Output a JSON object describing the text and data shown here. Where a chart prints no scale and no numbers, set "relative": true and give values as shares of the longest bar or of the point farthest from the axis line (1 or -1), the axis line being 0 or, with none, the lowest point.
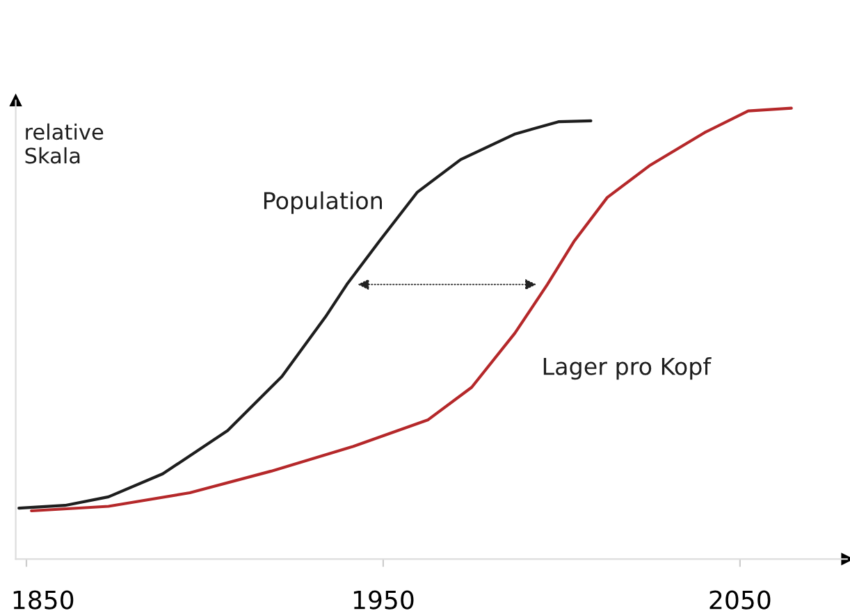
{
  "chart_data": {
    "type": "line",
    "relative": true,
    "ylabel": "relative\nSkala",
    "xlim": [
      1847,
      2080
    ],
    "xticks": [
      1850,
      1950,
      2050
    ],
    "grid": false,
    "legend": false,
    "series": [
      {
        "name": "Population",
        "color": "#1e1e1e",
        "x": [
          1847.9,
          1860.8,
          1873.0,
          1888.2,
          1906.4,
          1921.6,
          1933.8,
          1939.8,
          1949.0,
          1959.6,
          1971.7,
          1987.0,
          1999.1,
          2008.2
        ],
        "values": [
          0.113,
          0.119,
          0.138,
          0.189,
          0.285,
          0.405,
          0.537,
          0.609,
          0.706,
          0.814,
          0.886,
          0.943,
          0.97,
          0.972
        ]
      },
      {
        "name": "Lager pro Kopf",
        "color": "#b5282a",
        "x": [
          1851.4,
          1873.0,
          1895.8,
          1918.6,
          1941.3,
          1962.6,
          1974.8,
          1986.9,
          1996.0,
          2003.6,
          2012.8,
          2024.9,
          2040.1,
          2052.3,
          2064.4
        ],
        "values": [
          0.107,
          0.117,
          0.147,
          0.195,
          0.249,
          0.309,
          0.381,
          0.501,
          0.609,
          0.706,
          0.802,
          0.874,
          0.946,
          0.994,
          1.0
        ]
      }
    ]
  }
}
